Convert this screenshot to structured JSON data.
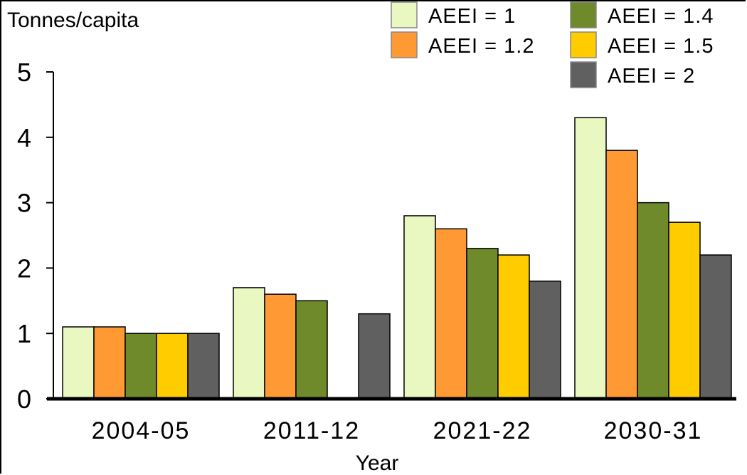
{
  "chart_data": {
    "type": "bar",
    "ylabel": "Tonnes/capita",
    "xlabel": "Year",
    "categories": [
      "2004-05",
      "2011-12",
      "2021-22",
      "2030-31"
    ],
    "ylim": [
      0,
      5
    ],
    "yticks": [
      0,
      1,
      2,
      3,
      4,
      5
    ],
    "grid": false,
    "legend_position": "top-right",
    "series": [
      {
        "name": "AEEI = 1",
        "color": "#e8f8c0",
        "values": [
          1.1,
          1.7,
          2.8,
          4.3
        ]
      },
      {
        "name": "AEEI = 1.2",
        "color": "#ff9933",
        "values": [
          1.1,
          1.6,
          2.6,
          3.8
        ]
      },
      {
        "name": "AEEI = 1.4",
        "color": "#6e8a2a",
        "values": [
          1.0,
          1.5,
          2.3,
          3.0
        ]
      },
      {
        "name": "AEEI = 1.5",
        "color": "#ffcc00",
        "values": [
          1.0,
          null,
          2.2,
          2.7
        ]
      },
      {
        "name": "AEEI = 2",
        "color": "#606060",
        "values": [
          1.0,
          1.3,
          1.8,
          2.2
        ]
      }
    ]
  }
}
